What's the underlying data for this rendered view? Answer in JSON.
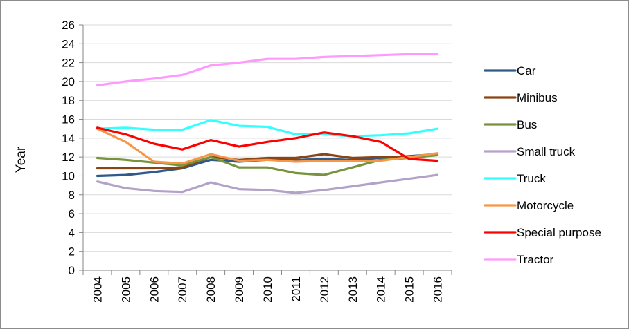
{
  "chart_data": {
    "type": "line",
    "title": "",
    "xlabel": "",
    "ylabel": "Year",
    "ylim": [
      0,
      26
    ],
    "y_ticks": [
      0,
      2,
      4,
      6,
      8,
      10,
      12,
      14,
      16,
      18,
      20,
      22,
      24,
      26
    ],
    "grid": "horizontal",
    "legend": "right",
    "categories": [
      "2004",
      "2005",
      "2006",
      "2007",
      "2008",
      "2009",
      "2010",
      "2011",
      "2012",
      "2013",
      "2014",
      "2015",
      "2016"
    ],
    "series": [
      {
        "name": "Car",
        "color": "#2e5a8c",
        "values": [
          10.0,
          10.1,
          10.4,
          10.8,
          11.7,
          11.5,
          11.7,
          11.7,
          11.8,
          11.7,
          11.9,
          12.1,
          12.3
        ]
      },
      {
        "name": "Minibus",
        "color": "#8b4513",
        "values": [
          10.8,
          10.8,
          10.8,
          10.9,
          12.0,
          11.7,
          11.9,
          11.9,
          12.3,
          11.9,
          12.0,
          12.0,
          12.3
        ]
      },
      {
        "name": "Bus",
        "color": "#77933c",
        "values": [
          11.9,
          11.7,
          11.4,
          11.1,
          12.0,
          10.9,
          10.9,
          10.3,
          10.1,
          10.9,
          11.7,
          11.9,
          12.2
        ]
      },
      {
        "name": "Small truck",
        "color": "#b3a2c7",
        "values": [
          9.4,
          8.7,
          8.4,
          8.3,
          9.3,
          8.6,
          8.5,
          8.2,
          8.5,
          8.9,
          9.3,
          9.7,
          10.1
        ]
      },
      {
        "name": "Truck",
        "color": "#33ffff",
        "values": [
          15.0,
          15.1,
          14.9,
          14.9,
          15.9,
          15.3,
          15.2,
          14.4,
          14.4,
          14.2,
          14.3,
          14.5,
          15.0
        ]
      },
      {
        "name": "Motorcycle",
        "color": "#f79646",
        "values": [
          15.0,
          13.6,
          11.5,
          11.3,
          12.3,
          11.6,
          11.7,
          11.5,
          11.6,
          11.6,
          11.6,
          12.0,
          12.4
        ]
      },
      {
        "name": "Special purpose",
        "color": "#ff0000",
        "values": [
          15.1,
          14.4,
          13.4,
          12.8,
          13.8,
          13.1,
          13.6,
          14.0,
          14.6,
          14.2,
          13.6,
          11.8,
          11.6
        ]
      },
      {
        "name": "Tractor",
        "color": "#ff99ff",
        "values": [
          19.6,
          20.0,
          20.3,
          20.7,
          21.7,
          22.0,
          22.4,
          22.4,
          22.6,
          22.7,
          22.8,
          22.9,
          22.9
        ]
      }
    ]
  }
}
